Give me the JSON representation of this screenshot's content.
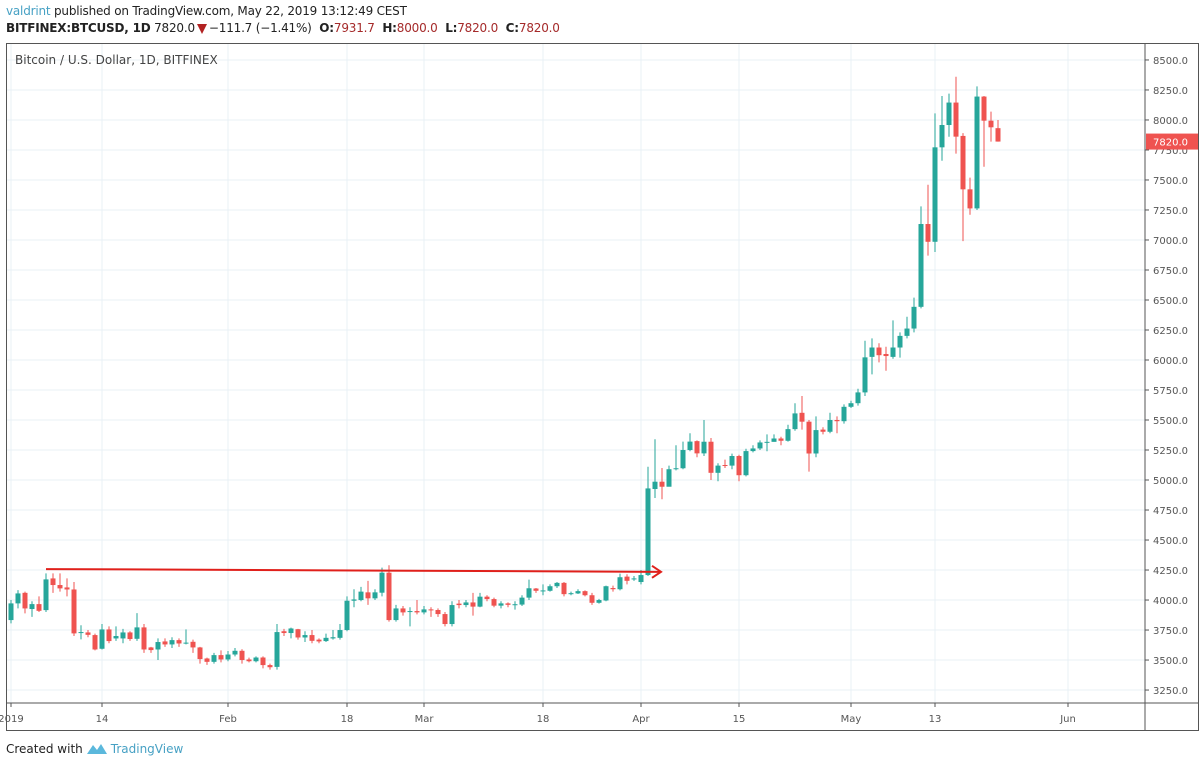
{
  "header": {
    "user": "valdrint",
    "published": "published on TradingView.com, May 22, 2019 13:12:49 CEST",
    "symbol": "BITFINEX:BTCUSD, 1D",
    "last": "7820.0",
    "direction_icon": "triangle-down-icon",
    "change": "−111.7 (−1.41%)",
    "ohlc": [
      {
        "label": "O:",
        "value": "7931.7"
      },
      {
        "label": "H:",
        "value": "8000.0"
      },
      {
        "label": "L:",
        "value": "7820.0"
      },
      {
        "label": "C:",
        "value": "7820.0"
      }
    ]
  },
  "footer": {
    "created_with": "Created with",
    "brand": "TradingView",
    "logo_icon": "tradingview-logo-icon"
  },
  "chart_data": {
    "type": "candlestick",
    "title": "Bitcoin / U.S. Dollar, 1D, BITFINEX",
    "ylim": [
      3142,
      8633
    ],
    "xlim": [
      "2018-12-31",
      "2019-06-20"
    ],
    "grid": true,
    "y_axis_side": "right",
    "y_ticks": [
      "8500.0",
      "8250.0",
      "8000.0",
      "7750.0",
      "7500.0",
      "7250.0",
      "7000.0",
      "6750.0",
      "6500.0",
      "6250.0",
      "6000.0",
      "5750.0",
      "5500.0",
      "5250.0",
      "5000.0",
      "4750.0",
      "4500.0",
      "4250.0",
      "4000.0",
      "3750.0",
      "3500.0",
      "3250.0"
    ],
    "x_ticks": [
      {
        "label": "2019",
        "date": "2019-01-01"
      },
      {
        "label": "14",
        "date": "2019-01-14"
      },
      {
        "label": "Feb",
        "date": "2019-02-01"
      },
      {
        "label": "18",
        "date": "2019-02-18"
      },
      {
        "label": "Mar",
        "date": "2019-03-01"
      },
      {
        "label": "18",
        "date": "2019-03-18"
      },
      {
        "label": "Apr",
        "date": "2019-04-01"
      },
      {
        "label": "15",
        "date": "2019-04-15"
      },
      {
        "label": "May",
        "date": "2019-05-01"
      },
      {
        "label": "13",
        "date": "2019-05-13"
      },
      {
        "label": "Jun",
        "date": "2019-06-01"
      }
    ],
    "last_price_label": "7820.0",
    "colors": {
      "up": "#26a69a",
      "down": "#ef5350",
      "grid": "#e9f0f6",
      "annotation": "#e0201b",
      "last_price": "#ef5350"
    },
    "annotations": [
      {
        "type": "arrow",
        "from": {
          "date": "2019-01-06",
          "price": 4258
        },
        "to": {
          "date": "2019-04-03",
          "price": 4235
        }
      }
    ],
    "candle_fields": [
      "date",
      "open",
      "high",
      "low",
      "close"
    ],
    "candles": [
      [
        "2018-12-31",
        3986,
        4000,
        3820,
        3833
      ],
      [
        "2019-01-01",
        3833,
        4000,
        3805,
        3972
      ],
      [
        "2019-01-02",
        3972,
        4083,
        3930,
        4055
      ],
      [
        "2019-01-03",
        4060,
        4070,
        3889,
        3930
      ],
      [
        "2019-01-04",
        3925,
        3990,
        3860,
        3966
      ],
      [
        "2019-01-05",
        3966,
        4030,
        3900,
        3910
      ],
      [
        "2019-01-06",
        3916,
        4222,
        3900,
        4172
      ],
      [
        "2019-01-07",
        4180,
        4222,
        4060,
        4125
      ],
      [
        "2019-01-08",
        4125,
        4222,
        4070,
        4097
      ],
      [
        "2019-01-09",
        4105,
        4180,
        4030,
        4088
      ],
      [
        "2019-01-10",
        4088,
        4150,
        3700,
        3722
      ],
      [
        "2019-01-11",
        3727,
        3790,
        3672,
        3733
      ],
      [
        "2019-01-12",
        3730,
        3750,
        3690,
        3710
      ],
      [
        "2019-01-13",
        3708,
        3720,
        3580,
        3588
      ],
      [
        "2019-01-14",
        3594,
        3800,
        3588,
        3755
      ],
      [
        "2019-01-15",
        3755,
        3780,
        3640,
        3658
      ],
      [
        "2019-01-16",
        3680,
        3780,
        3660,
        3700
      ],
      [
        "2019-01-17",
        3680,
        3760,
        3640,
        3730
      ],
      [
        "2019-01-18",
        3730,
        3740,
        3660,
        3675
      ],
      [
        "2019-01-19",
        3677,
        3891,
        3660,
        3772
      ],
      [
        "2019-01-20",
        3772,
        3800,
        3560,
        3588
      ],
      [
        "2019-01-21",
        3605,
        3610,
        3560,
        3583
      ],
      [
        "2019-01-22",
        3588,
        3680,
        3500,
        3650
      ],
      [
        "2019-01-23",
        3655,
        3680,
        3610,
        3630
      ],
      [
        "2019-01-24",
        3630,
        3690,
        3600,
        3666
      ],
      [
        "2019-01-25",
        3666,
        3680,
        3610,
        3638
      ],
      [
        "2019-01-26",
        3640,
        3755,
        3630,
        3645
      ],
      [
        "2019-01-27",
        3652,
        3670,
        3560,
        3605
      ],
      [
        "2019-01-28",
        3605,
        3610,
        3470,
        3508
      ],
      [
        "2019-01-29",
        3513,
        3520,
        3460,
        3485
      ],
      [
        "2019-01-30",
        3485,
        3560,
        3470,
        3541
      ],
      [
        "2019-01-31",
        3541,
        3580,
        3480,
        3505
      ],
      [
        "2019-02-01",
        3505,
        3575,
        3490,
        3546
      ],
      [
        "2019-02-02",
        3546,
        3600,
        3530,
        3577
      ],
      [
        "2019-02-03",
        3577,
        3590,
        3470,
        3500
      ],
      [
        "2019-02-04",
        3505,
        3520,
        3480,
        3490
      ],
      [
        "2019-02-05",
        3490,
        3530,
        3480,
        3521
      ],
      [
        "2019-02-06",
        3521,
        3530,
        3430,
        3458
      ],
      [
        "2019-02-07",
        3458,
        3470,
        3420,
        3440
      ],
      [
        "2019-02-08",
        3443,
        3800,
        3420,
        3733
      ],
      [
        "2019-02-09",
        3740,
        3760,
        3700,
        3725
      ],
      [
        "2019-02-10",
        3725,
        3770,
        3680,
        3763
      ],
      [
        "2019-02-11",
        3757,
        3760,
        3670,
        3688
      ],
      [
        "2019-02-12",
        3688,
        3740,
        3650,
        3708
      ],
      [
        "2019-02-13",
        3708,
        3750,
        3640,
        3660
      ],
      [
        "2019-02-14",
        3670,
        3680,
        3640,
        3655
      ],
      [
        "2019-02-15",
        3658,
        3720,
        3650,
        3685
      ],
      [
        "2019-02-16",
        3680,
        3750,
        3670,
        3690
      ],
      [
        "2019-02-17",
        3685,
        3800,
        3670,
        3750
      ],
      [
        "2019-02-18",
        3750,
        4030,
        3740,
        3994
      ],
      [
        "2019-02-19",
        3994,
        4090,
        3940,
        4005
      ],
      [
        "2019-02-20",
        4000,
        4110,
        3990,
        4070
      ],
      [
        "2019-02-21",
        4064,
        4160,
        3960,
        4014
      ],
      [
        "2019-02-22",
        4014,
        4090,
        4000,
        4064
      ],
      [
        "2019-02-23",
        4061,
        4270,
        4030,
        4228
      ],
      [
        "2019-02-24",
        4228,
        4290,
        3820,
        3833
      ],
      [
        "2019-02-25",
        3833,
        3960,
        3820,
        3930
      ],
      [
        "2019-02-26",
        3930,
        3950,
        3870,
        3897
      ],
      [
        "2019-02-27",
        3900,
        3940,
        3780,
        3908
      ],
      [
        "2019-02-28",
        3908,
        4000,
        3880,
        3897
      ],
      [
        "2019-03-01",
        3897,
        3950,
        3880,
        3922
      ],
      [
        "2019-03-02",
        3922,
        3940,
        3860,
        3917
      ],
      [
        "2019-03-03",
        3917,
        3930,
        3860,
        3883
      ],
      [
        "2019-03-04",
        3883,
        3900,
        3780,
        3800
      ],
      [
        "2019-03-05",
        3800,
        3990,
        3780,
        3958
      ],
      [
        "2019-03-06",
        3970,
        4000,
        3930,
        3958
      ],
      [
        "2019-03-07",
        3958,
        4000,
        3940,
        3980
      ],
      [
        "2019-03-08",
        3980,
        4060,
        3870,
        3945
      ],
      [
        "2019-03-09",
        3945,
        4060,
        3940,
        4028
      ],
      [
        "2019-03-10",
        4028,
        4040,
        3990,
        4008
      ],
      [
        "2019-03-11",
        4008,
        4020,
        3940,
        3953
      ],
      [
        "2019-03-12",
        3953,
        3990,
        3930,
        3972
      ],
      [
        "2019-03-13",
        3972,
        3980,
        3940,
        3960
      ],
      [
        "2019-03-14",
        3962,
        3990,
        3920,
        3965
      ],
      [
        "2019-03-15",
        3962,
        4040,
        3950,
        4020
      ],
      [
        "2019-03-16",
        4020,
        4170,
        4000,
        4098
      ],
      [
        "2019-03-17",
        4096,
        4100,
        4060,
        4077
      ],
      [
        "2019-03-18",
        4077,
        4130,
        4040,
        4080
      ],
      [
        "2019-03-19",
        4077,
        4130,
        4070,
        4115
      ],
      [
        "2019-03-20",
        4115,
        4150,
        4100,
        4143
      ],
      [
        "2019-03-21",
        4143,
        4150,
        4030,
        4049
      ],
      [
        "2019-03-22",
        4050,
        4070,
        4040,
        4057
      ],
      [
        "2019-03-23",
        4055,
        4090,
        4050,
        4074
      ],
      [
        "2019-03-24",
        4074,
        4080,
        4030,
        4040
      ],
      [
        "2019-03-25",
        4040,
        4060,
        3960,
        3977
      ],
      [
        "2019-03-26",
        3977,
        4010,
        3970,
        4000
      ],
      [
        "2019-03-27",
        3996,
        4120,
        3990,
        4115
      ],
      [
        "2019-03-28",
        4100,
        4120,
        4070,
        4090
      ],
      [
        "2019-03-29",
        4090,
        4220,
        4080,
        4190
      ],
      [
        "2019-03-30",
        4195,
        4215,
        4130,
        4160
      ],
      [
        "2019-03-31",
        4172,
        4200,
        4160,
        4180
      ],
      [
        "2019-04-01",
        4150,
        4250,
        4130,
        4208
      ],
      [
        "2019-04-02",
        4208,
        5110,
        4200,
        4930
      ],
      [
        "2019-04-03",
        4925,
        5340,
        4850,
        4986
      ],
      [
        "2019-04-04",
        4986,
        5100,
        4840,
        4944
      ],
      [
        "2019-04-05",
        4944,
        5120,
        4950,
        5090
      ],
      [
        "2019-04-06",
        5090,
        5290,
        5080,
        5098
      ],
      [
        "2019-04-07",
        5098,
        5320,
        5090,
        5250
      ],
      [
        "2019-04-08",
        5250,
        5390,
        5240,
        5320
      ],
      [
        "2019-04-09",
        5324,
        5330,
        5190,
        5222
      ],
      [
        "2019-04-10",
        5222,
        5500,
        5200,
        5319
      ],
      [
        "2019-04-11",
        5319,
        5350,
        5000,
        5060
      ],
      [
        "2019-04-12",
        5060,
        5140,
        4990,
        5120
      ],
      [
        "2019-04-13",
        5125,
        5170,
        5100,
        5120
      ],
      [
        "2019-04-14",
        5120,
        5220,
        5090,
        5200
      ],
      [
        "2019-04-15",
        5200,
        5210,
        4990,
        5040
      ],
      [
        "2019-04-16",
        5040,
        5260,
        5030,
        5241
      ],
      [
        "2019-04-17",
        5241,
        5290,
        5230,
        5263
      ],
      [
        "2019-04-18",
        5263,
        5330,
        5250,
        5313
      ],
      [
        "2019-04-19",
        5313,
        5380,
        5240,
        5318
      ],
      [
        "2019-04-20",
        5318,
        5380,
        5320,
        5346
      ],
      [
        "2019-04-21",
        5346,
        5360,
        5290,
        5327
      ],
      [
        "2019-04-22",
        5327,
        5460,
        5320,
        5424
      ],
      [
        "2019-04-23",
        5424,
        5640,
        5410,
        5555
      ],
      [
        "2019-04-24",
        5560,
        5700,
        5420,
        5486
      ],
      [
        "2019-04-25",
        5486,
        5500,
        5070,
        5221
      ],
      [
        "2019-04-26",
        5221,
        5530,
        5190,
        5416
      ],
      [
        "2019-04-27",
        5420,
        5440,
        5380,
        5402
      ],
      [
        "2019-04-28",
        5402,
        5560,
        5390,
        5500
      ],
      [
        "2019-04-29",
        5500,
        5530,
        5390,
        5490
      ],
      [
        "2019-04-30",
        5490,
        5630,
        5470,
        5610
      ],
      [
        "2019-05-01",
        5610,
        5660,
        5600,
        5640
      ],
      [
        "2019-05-02",
        5640,
        5760,
        5620,
        5730
      ],
      [
        "2019-05-03",
        5730,
        6160,
        5700,
        6022
      ],
      [
        "2019-05-04",
        6026,
        6180,
        5880,
        6104
      ],
      [
        "2019-05-05",
        6104,
        6140,
        5980,
        6040
      ],
      [
        "2019-05-06",
        6050,
        6110,
        5910,
        6033
      ],
      [
        "2019-05-07",
        6026,
        6330,
        6010,
        6104
      ],
      [
        "2019-05-08",
        6104,
        6230,
        6020,
        6201
      ],
      [
        "2019-05-09",
        6201,
        6360,
        6180,
        6262
      ],
      [
        "2019-05-10",
        6262,
        6520,
        6230,
        6443
      ],
      [
        "2019-05-11",
        6443,
        7280,
        6430,
        7133
      ],
      [
        "2019-05-12",
        7133,
        7460,
        6870,
        6985
      ],
      [
        "2019-05-13",
        6985,
        8055,
        6900,
        7772
      ],
      [
        "2019-05-14",
        7772,
        8200,
        7660,
        7958
      ],
      [
        "2019-05-15",
        7958,
        8220,
        7860,
        8145
      ],
      [
        "2019-05-16",
        8145,
        8360,
        7720,
        7861
      ],
      [
        "2019-05-17",
        7867,
        7890,
        6990,
        7422
      ],
      [
        "2019-05-18",
        7422,
        7520,
        7210,
        7263
      ],
      [
        "2019-05-19",
        7263,
        8280,
        7250,
        8195
      ],
      [
        "2019-05-20",
        8195,
        8200,
        7610,
        7994
      ],
      [
        "2019-05-21",
        7994,
        8070,
        7820,
        7939
      ],
      [
        "2019-05-22",
        7931.7,
        8000,
        7820,
        7820
      ]
    ]
  }
}
